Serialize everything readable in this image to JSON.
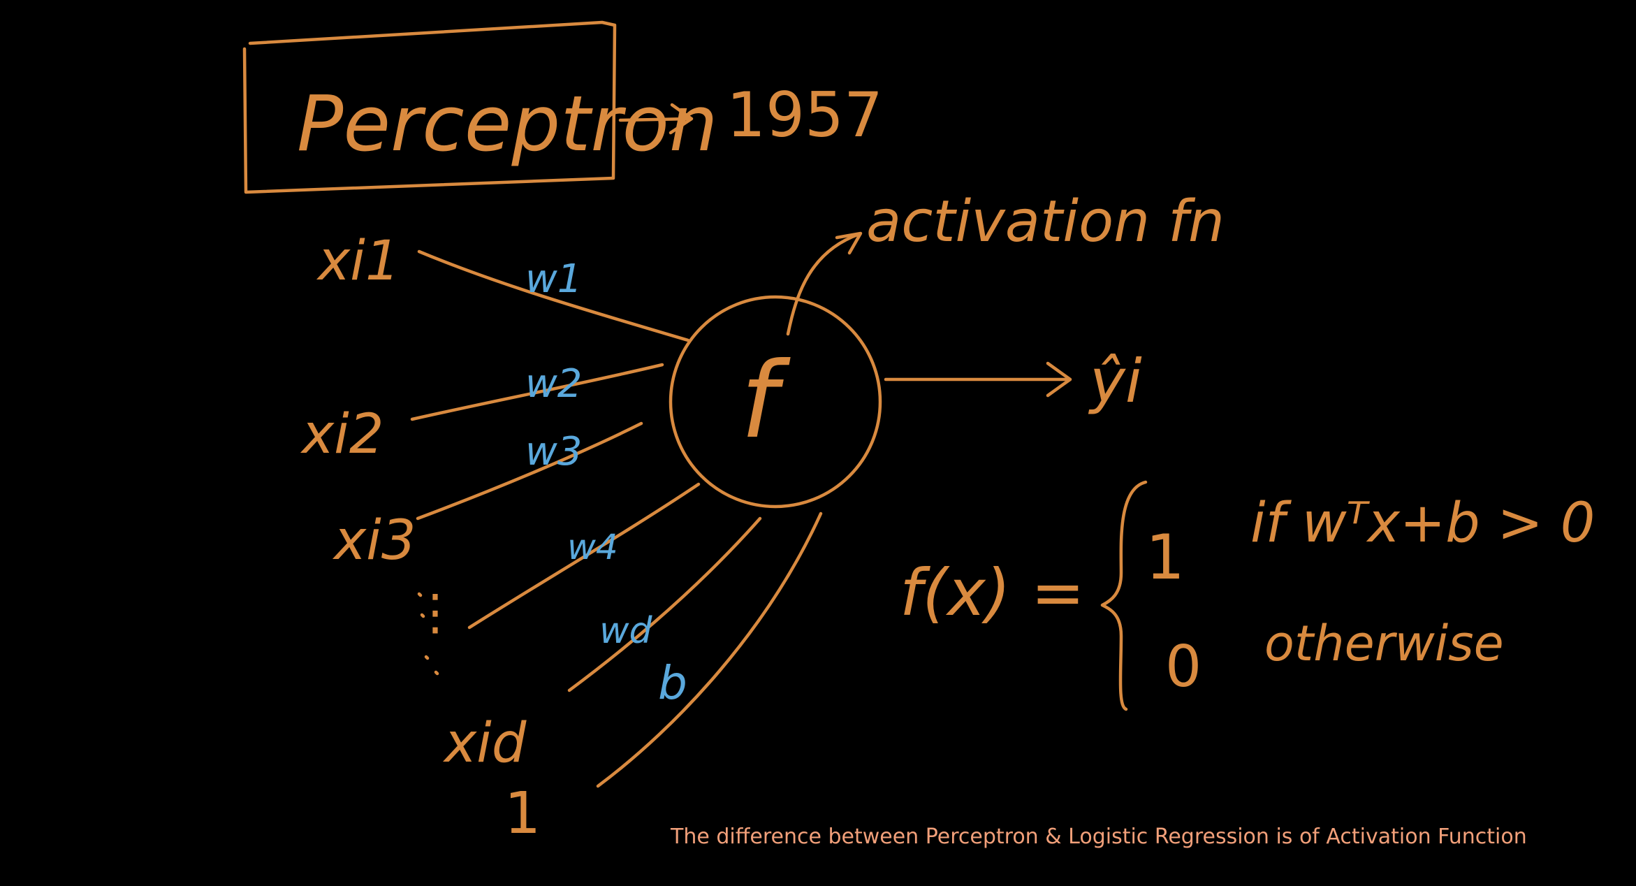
{
  "diagram": {
    "title": "Perceptron",
    "year": "1957",
    "activation_label": "activation fn",
    "neuron_label": "f",
    "output_label": "ŷi",
    "inputs": [
      {
        "label": "xi1",
        "weight": "w1"
      },
      {
        "label": "xi2",
        "weight": "w2"
      },
      {
        "label": "xi3",
        "weight": "w3"
      },
      {
        "label": "⋮",
        "weight": "w4"
      },
      {
        "label": "xid",
        "weight": "wd"
      },
      {
        "label": "1",
        "weight": "b"
      }
    ],
    "formula": {
      "lhs": "f(x) =",
      "case1_value": "1",
      "case1_condition": "if  wᵀx+b > 0",
      "case2_value": "0",
      "case2_condition": "otherwise"
    }
  },
  "caption": "The difference between Perceptron & Logistic Regression is of Activation Function",
  "colors": {
    "background": "#000000",
    "ink_orange": "#d98a3f",
    "ink_blue": "#5aa8dc",
    "caption": "#f2a07a"
  }
}
